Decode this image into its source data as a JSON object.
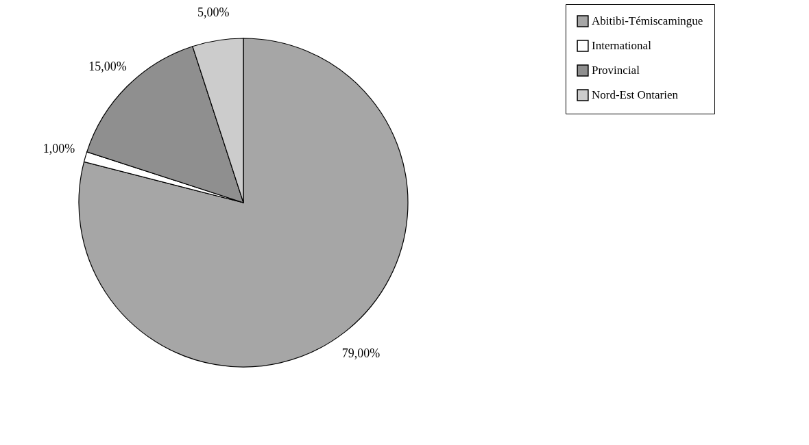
{
  "chart_data": {
    "type": "pie",
    "categories": [
      "Abitibi-Témiscamingue",
      "International",
      "Provincial",
      "Nord-Est Ontarien"
    ],
    "values": [
      79,
      1,
      15,
      5
    ],
    "colors": [
      "#a6a6a6",
      "#ffffff",
      "#8f8f8f",
      "#cccccc"
    ],
    "value_labels": [
      "79,00%",
      "1,00%",
      "15,00%",
      "5,00%"
    ],
    "legend": "right"
  }
}
